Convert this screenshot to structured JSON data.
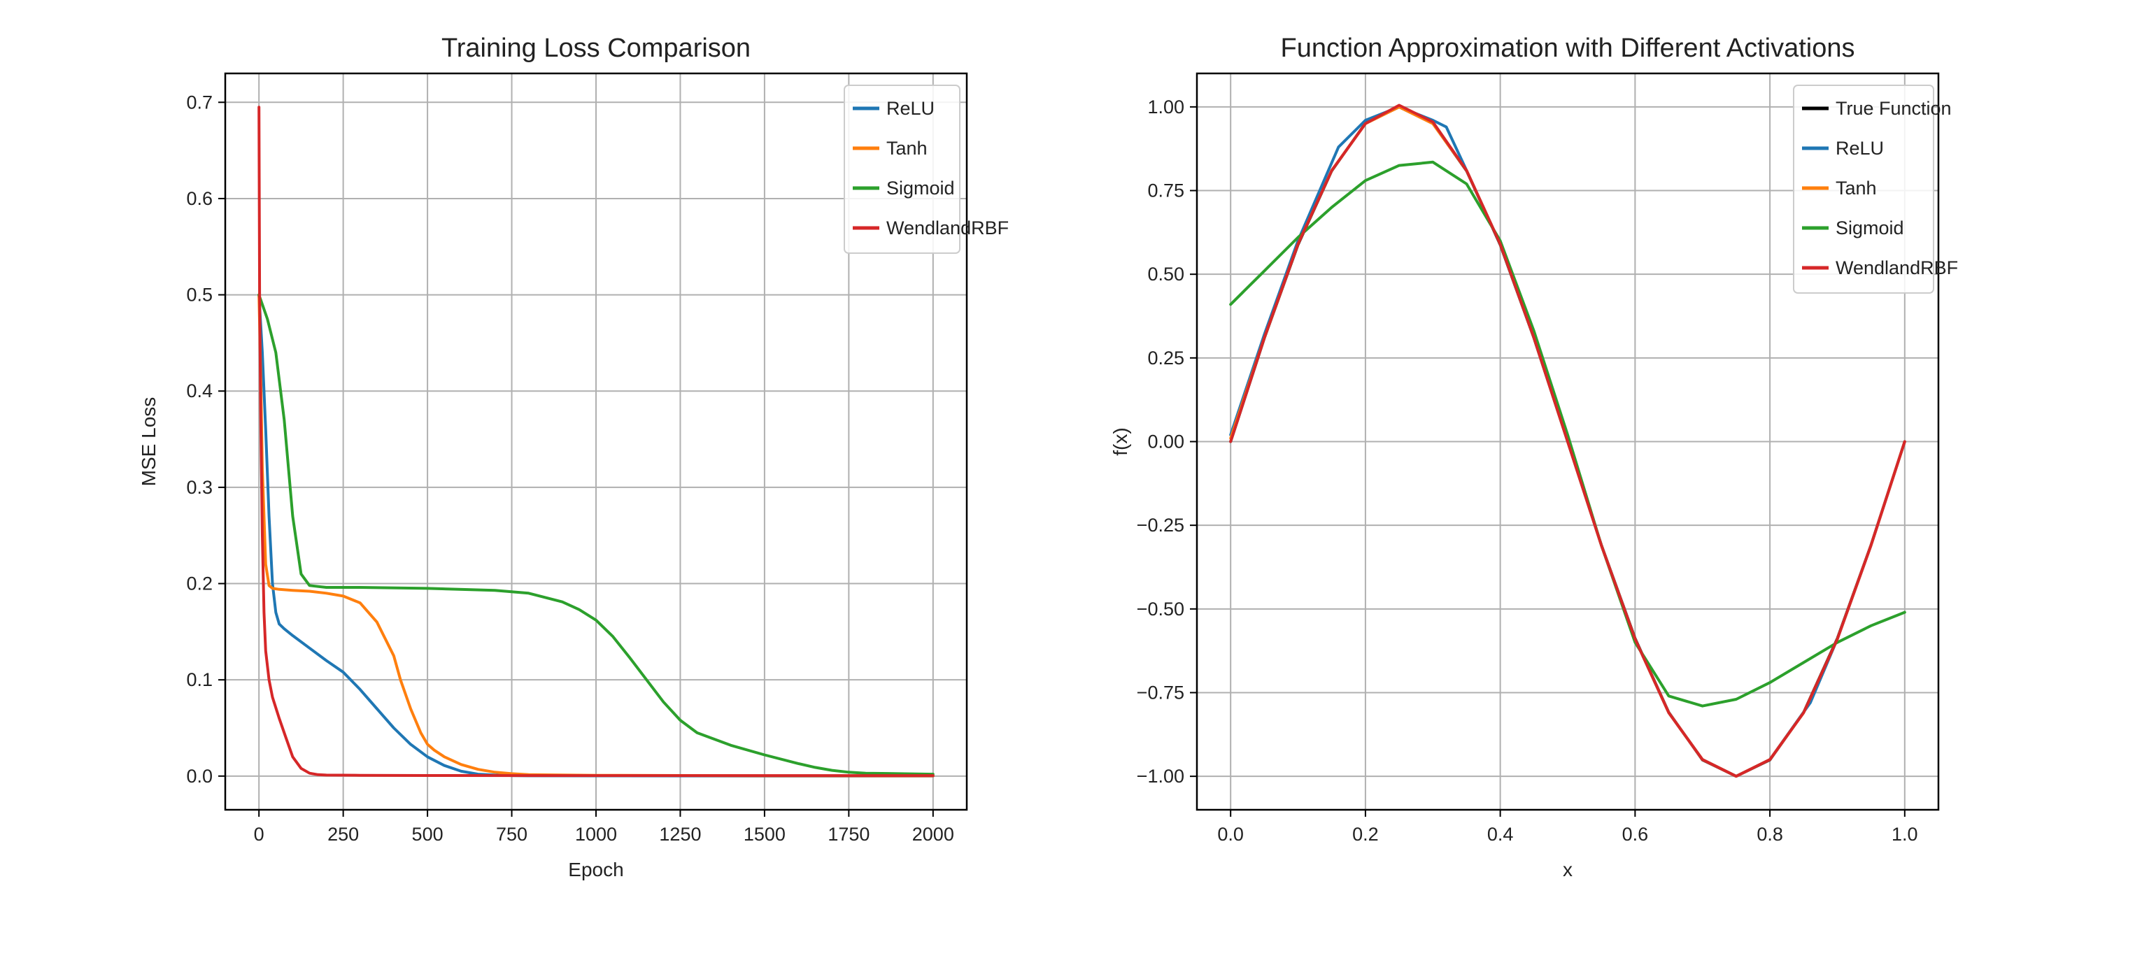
{
  "chart_data": [
    {
      "type": "line",
      "title": "Training Loss Comparison",
      "xlabel": "Epoch",
      "ylabel": "MSE Loss",
      "xlim": [
        -100,
        2100
      ],
      "ylim": [
        -0.035,
        0.73
      ],
      "xticks": [
        0,
        250,
        500,
        750,
        1000,
        1250,
        1500,
        1750,
        2000
      ],
      "xtick_labels": [
        "0",
        "250",
        "500",
        "750",
        "1000",
        "1250",
        "1500",
        "1750",
        "2000"
      ],
      "yticks": [
        0.0,
        0.1,
        0.2,
        0.3,
        0.4,
        0.5,
        0.6,
        0.7
      ],
      "ytick_labels": [
        "0.0",
        "0.1",
        "0.2",
        "0.3",
        "0.4",
        "0.5",
        "0.6",
        "0.7"
      ],
      "grid": true,
      "legend": "top-right",
      "series": [
        {
          "name": "ReLU",
          "color": "#1f77b4",
          "x": [
            0,
            10,
            20,
            30,
            40,
            50,
            60,
            75,
            100,
            150,
            200,
            250,
            300,
            350,
            400,
            450,
            500,
            550,
            600,
            650,
            700,
            750,
            800,
            1000,
            1500,
            2000
          ],
          "y": [
            0.5,
            0.44,
            0.36,
            0.27,
            0.2,
            0.17,
            0.158,
            0.153,
            0.146,
            0.133,
            0.12,
            0.108,
            0.09,
            0.07,
            0.05,
            0.033,
            0.02,
            0.011,
            0.005,
            0.002,
            0.001,
            0.0005,
            0.0003,
            0.0002,
            0.0001,
            0.0001
          ]
        },
        {
          "name": "Tanh",
          "color": "#ff7f0e",
          "x": [
            0,
            5,
            10,
            20,
            30,
            40,
            60,
            100,
            150,
            200,
            250,
            300,
            350,
            400,
            420,
            450,
            480,
            500,
            520,
            550,
            600,
            650,
            700,
            750,
            800,
            1000,
            1500,
            2000
          ],
          "y": [
            0.5,
            0.42,
            0.32,
            0.22,
            0.198,
            0.195,
            0.194,
            0.193,
            0.192,
            0.19,
            0.187,
            0.18,
            0.16,
            0.125,
            0.1,
            0.07,
            0.045,
            0.033,
            0.027,
            0.02,
            0.012,
            0.007,
            0.004,
            0.0025,
            0.0015,
            0.0008,
            0.0003,
            0.0002
          ]
        },
        {
          "name": "Sigmoid",
          "color": "#2ca02c",
          "x": [
            0,
            10,
            25,
            50,
            75,
            100,
            125,
            150,
            175,
            200,
            300,
            500,
            700,
            800,
            900,
            950,
            1000,
            1050,
            1100,
            1150,
            1200,
            1250,
            1300,
            1400,
            1500,
            1600,
            1650,
            1700,
            1750,
            1800,
            1900,
            2000
          ],
          "y": [
            0.5,
            0.49,
            0.475,
            0.44,
            0.37,
            0.27,
            0.21,
            0.198,
            0.197,
            0.196,
            0.196,
            0.195,
            0.193,
            0.19,
            0.181,
            0.173,
            0.162,
            0.145,
            0.123,
            0.1,
            0.077,
            0.058,
            0.045,
            0.032,
            0.022,
            0.013,
            0.009,
            0.006,
            0.004,
            0.003,
            0.0025,
            0.002
          ]
        },
        {
          "name": "WendlandRBF",
          "color": "#d62728",
          "x": [
            0,
            2,
            5,
            10,
            15,
            20,
            30,
            40,
            60,
            80,
            100,
            125,
            150,
            175,
            200,
            300,
            500,
            1000,
            1500,
            2000
          ],
          "y": [
            0.695,
            0.5,
            0.38,
            0.25,
            0.17,
            0.13,
            0.1,
            0.082,
            0.06,
            0.04,
            0.02,
            0.008,
            0.003,
            0.0015,
            0.001,
            0.0008,
            0.0006,
            0.0005,
            0.0005,
            0.0005
          ]
        }
      ]
    },
    {
      "type": "line",
      "title": "Function Approximation with Different Activations",
      "xlabel": "x",
      "ylabel": "f(x)",
      "xlim": [
        -0.05,
        1.05
      ],
      "ylim": [
        -1.1,
        1.1
      ],
      "xticks": [
        0.0,
        0.2,
        0.4,
        0.6,
        0.8,
        1.0
      ],
      "xtick_labels": [
        "0.0",
        "0.2",
        "0.4",
        "0.6",
        "0.8",
        "1.0"
      ],
      "yticks": [
        1.0,
        0.75,
        0.5,
        0.25,
        0.0,
        -0.25,
        -0.5,
        -0.75,
        -1.0
      ],
      "ytick_labels": [
        "1.00",
        "0.75",
        "0.50",
        "0.25",
        "0.00",
        "−0.25",
        "−0.50",
        "−0.75",
        "−1.00"
      ],
      "grid": true,
      "legend": "top-right",
      "series": [
        {
          "name": "True Function",
          "color": "#000000",
          "x": [
            0.0,
            0.05,
            0.1,
            0.15,
            0.2,
            0.25,
            0.3,
            0.35,
            0.4,
            0.45,
            0.5,
            0.55,
            0.6,
            0.65,
            0.7,
            0.75,
            0.8,
            0.85,
            0.9,
            0.95,
            1.0
          ],
          "y": [
            0.0,
            0.309,
            0.588,
            0.809,
            0.951,
            1.0,
            0.951,
            0.809,
            0.588,
            0.309,
            0.0,
            -0.309,
            -0.588,
            -0.809,
            -0.951,
            -1.0,
            -0.951,
            -0.809,
            -0.588,
            -0.309,
            0.0
          ]
        },
        {
          "name": "ReLU",
          "color": "#1f77b4",
          "x": [
            0.0,
            0.05,
            0.1,
            0.16,
            0.2,
            0.25,
            0.3,
            0.32,
            0.35,
            0.4,
            0.45,
            0.5,
            0.55,
            0.6,
            0.65,
            0.7,
            0.75,
            0.8,
            0.86,
            0.9,
            0.95,
            1.0
          ],
          "y": [
            0.02,
            0.32,
            0.6,
            0.88,
            0.96,
            1.0,
            0.96,
            0.94,
            0.81,
            0.59,
            0.31,
            0.0,
            -0.31,
            -0.59,
            -0.81,
            -0.95,
            -1.0,
            -0.95,
            -0.78,
            -0.59,
            -0.31,
            0.0
          ]
        },
        {
          "name": "Tanh",
          "color": "#ff7f0e",
          "x": [
            0.0,
            0.05,
            0.1,
            0.15,
            0.2,
            0.25,
            0.3,
            0.35,
            0.4,
            0.45,
            0.5,
            0.55,
            0.6,
            0.65,
            0.7,
            0.75,
            0.8,
            0.85,
            0.9,
            0.95,
            1.0
          ],
          "y": [
            0.01,
            0.31,
            0.59,
            0.81,
            0.95,
            1.0,
            0.95,
            0.81,
            0.59,
            0.31,
            0.0,
            -0.31,
            -0.59,
            -0.81,
            -0.95,
            -1.0,
            -0.95,
            -0.81,
            -0.59,
            -0.31,
            0.0
          ]
        },
        {
          "name": "Sigmoid",
          "color": "#2ca02c",
          "x": [
            0.0,
            0.05,
            0.1,
            0.15,
            0.2,
            0.25,
            0.3,
            0.35,
            0.4,
            0.45,
            0.5,
            0.55,
            0.6,
            0.65,
            0.7,
            0.75,
            0.8,
            0.85,
            0.9,
            0.95,
            1.0
          ],
          "y": [
            0.41,
            0.51,
            0.61,
            0.7,
            0.78,
            0.825,
            0.835,
            0.77,
            0.6,
            0.33,
            0.02,
            -0.31,
            -0.6,
            -0.76,
            -0.79,
            -0.77,
            -0.72,
            -0.66,
            -0.6,
            -0.55,
            -0.51
          ]
        },
        {
          "name": "WendlandRBF",
          "color": "#d62728",
          "x": [
            0.0,
            0.05,
            0.1,
            0.15,
            0.2,
            0.25,
            0.3,
            0.35,
            0.4,
            0.45,
            0.5,
            0.55,
            0.6,
            0.65,
            0.7,
            0.75,
            0.8,
            0.85,
            0.9,
            0.95,
            1.0
          ],
          "y": [
            0.0,
            0.31,
            0.59,
            0.81,
            0.95,
            1.005,
            0.955,
            0.81,
            0.59,
            0.31,
            0.0,
            -0.31,
            -0.59,
            -0.81,
            -0.95,
            -1.0,
            -0.95,
            -0.81,
            -0.59,
            -0.31,
            0.0
          ]
        }
      ]
    }
  ]
}
